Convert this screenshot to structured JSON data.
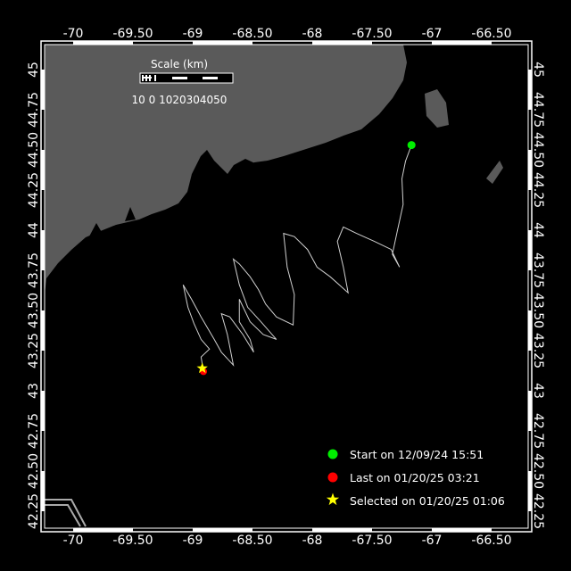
{
  "map": {
    "projection_center_note": "",
    "lon_ticks": [
      "-70",
      "-69.50",
      "-69",
      "-68.50",
      "-68",
      "-67.50",
      "-67",
      "-66.50"
    ],
    "lat_ticks": [
      "45",
      "44.75",
      "44.50",
      "44.25",
      "44",
      "43.75",
      "43.50",
      "43.25",
      "43",
      "42.75",
      "42.50",
      "42.25"
    ],
    "colors": {
      "land": "#5a5a5a",
      "ocean": "#000000",
      "track": "#d0d0d0",
      "start": "#00ee00",
      "last": "#ff0000",
      "selected": "#ffff00"
    }
  },
  "scale": {
    "title": "Scale (km)",
    "labels": "10 0 1020304050"
  },
  "legend": {
    "start": "Start on 12/09/24 15:51",
    "last": "Last on 01/20/25 03:21",
    "selected": "Selected on 01/20/25 01:06"
  },
  "track": [
    [
      -67.17,
      44.53
    ],
    [
      -67.22,
      44.43
    ],
    [
      -67.25,
      44.32
    ],
    [
      -67.24,
      44.16
    ],
    [
      -67.29,
      43.99
    ],
    [
      -67.33,
      43.85
    ],
    [
      -67.27,
      43.77
    ],
    [
      -67.34,
      43.88
    ],
    [
      -67.48,
      43.93
    ],
    [
      -67.63,
      43.98
    ],
    [
      -67.74,
      44.02
    ],
    [
      -67.79,
      43.93
    ],
    [
      -67.74,
      43.77
    ],
    [
      -67.7,
      43.61
    ],
    [
      -67.85,
      43.71
    ],
    [
      -67.96,
      43.77
    ],
    [
      -68.04,
      43.88
    ],
    [
      -68.15,
      43.96
    ],
    [
      -68.24,
      43.98
    ],
    [
      -68.21,
      43.77
    ],
    [
      -68.15,
      43.6
    ],
    [
      -68.16,
      43.41
    ],
    [
      -68.3,
      43.46
    ],
    [
      -68.39,
      43.54
    ],
    [
      -68.45,
      43.63
    ],
    [
      -68.52,
      43.71
    ],
    [
      -68.61,
      43.79
    ],
    [
      -68.66,
      43.82
    ],
    [
      -68.61,
      43.66
    ],
    [
      -68.54,
      43.52
    ],
    [
      -68.43,
      43.43
    ],
    [
      -68.3,
      43.32
    ],
    [
      -68.41,
      43.35
    ],
    [
      -68.52,
      43.43
    ],
    [
      -68.61,
      43.57
    ],
    [
      -68.61,
      43.43
    ],
    [
      -68.52,
      43.32
    ],
    [
      -68.49,
      43.24
    ],
    [
      -68.58,
      43.35
    ],
    [
      -68.69,
      43.46
    ],
    [
      -68.76,
      43.48
    ],
    [
      -68.71,
      43.35
    ],
    [
      -68.66,
      43.16
    ],
    [
      -68.76,
      43.24
    ],
    [
      -68.82,
      43.32
    ],
    [
      -68.93,
      43.46
    ],
    [
      -69.01,
      43.57
    ],
    [
      -69.08,
      43.66
    ],
    [
      -69.04,
      43.52
    ],
    [
      -68.99,
      43.42
    ],
    [
      -68.93,
      43.32
    ],
    [
      -68.86,
      43.26
    ],
    [
      -68.93,
      43.21
    ],
    [
      -68.91,
      43.12
    ]
  ],
  "start_point": [
    -67.17,
    44.53
  ],
  "last_point": [
    -68.91,
    43.12
  ],
  "selected_point": [
    -68.92,
    43.14
  ]
}
